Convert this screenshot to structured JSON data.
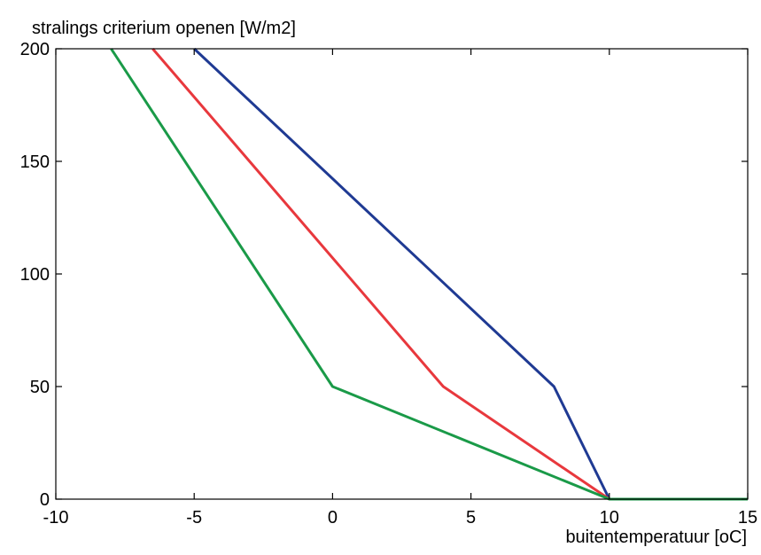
{
  "chart_data": {
    "type": "line",
    "title": "",
    "ylabel": "stralings criterium openen [W/m2]",
    "xlabel": "buitentemperatuur [oC]",
    "xlim": [
      -10,
      15
    ],
    "ylim": [
      0,
      200
    ],
    "xticks": [
      -10,
      -5,
      0,
      5,
      10,
      15
    ],
    "yticks": [
      0,
      50,
      100,
      150,
      200
    ],
    "xtick_labels": [
      "-10",
      "-5",
      "0",
      "5",
      "10",
      "15"
    ],
    "ytick_labels": [
      "0",
      "50",
      "100",
      "150",
      "200"
    ],
    "grid": false,
    "legend": "none",
    "series": [
      {
        "color": "#1f3a93",
        "x": [
          -5,
          8,
          10,
          15
        ],
        "y": [
          200,
          50,
          0,
          0
        ]
      },
      {
        "color": "#e8383d",
        "x": [
          -6.5,
          4,
          10,
          15
        ],
        "y": [
          200,
          50,
          0,
          0
        ]
      },
      {
        "color": "#1a9a48",
        "x": [
          -8,
          0,
          10,
          15
        ],
        "y": [
          200,
          50,
          0,
          0
        ]
      }
    ]
  }
}
